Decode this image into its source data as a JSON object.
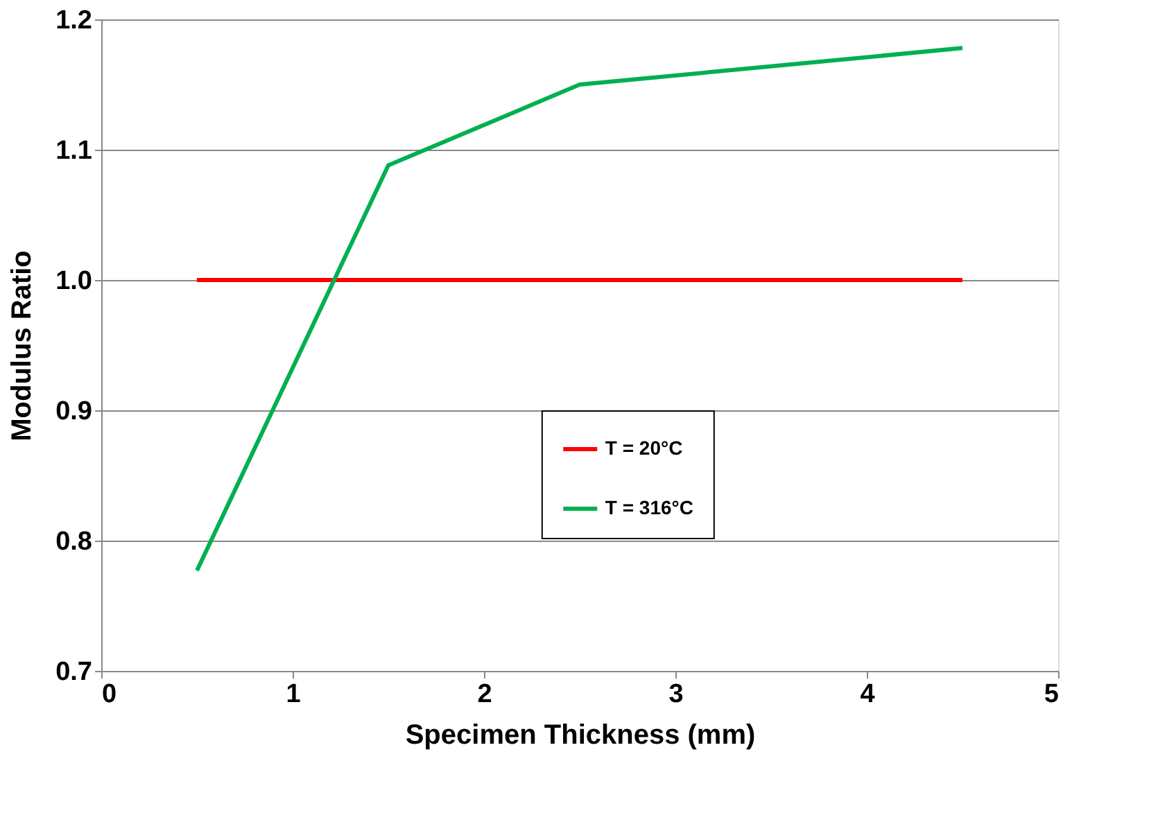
{
  "chart_data": {
    "type": "line",
    "xlabel": "Specimen Thickness (mm)",
    "ylabel": "Modulus Ratio",
    "x": [
      0.5,
      1.5,
      2.5,
      4.5
    ],
    "series": [
      {
        "name": "T = 20°C",
        "color": "#ff0000",
        "values": [
          1.0,
          1.0,
          1.0,
          1.0
        ]
      },
      {
        "name": "T = 316°C",
        "color": "#00b050",
        "values": [
          0.777,
          1.088,
          1.15,
          1.178
        ]
      }
    ],
    "xlim": [
      0,
      5
    ],
    "xticks": [
      0,
      1,
      2,
      3,
      4,
      5
    ],
    "ylim": [
      0.7,
      1.2
    ],
    "yticks": [
      0.7,
      0.8,
      0.9,
      {
        "value": 1,
        "label": "1.0"
      },
      1.1,
      1.2
    ],
    "grid": "y",
    "legend": "center",
    "marker": "none",
    "line_style": "solid"
  }
}
